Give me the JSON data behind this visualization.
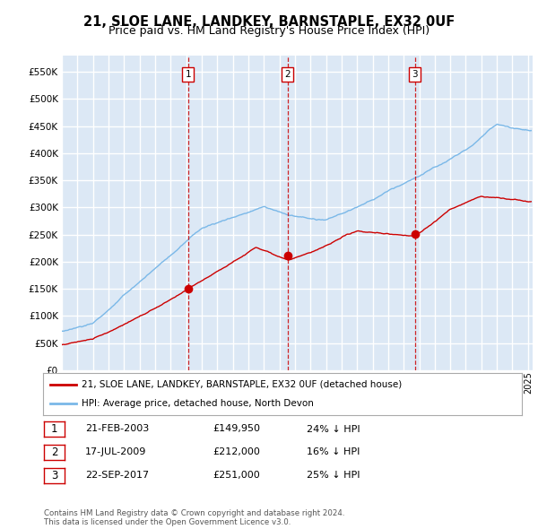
{
  "title": "21, SLOE LANE, LANDKEY, BARNSTAPLE, EX32 0UF",
  "subtitle": "Price paid vs. HM Land Registry's House Price Index (HPI)",
  "ytick_values": [
    0,
    50000,
    100000,
    150000,
    200000,
    250000,
    300000,
    350000,
    400000,
    450000,
    500000,
    550000
  ],
  "ylim": [
    0,
    580000
  ],
  "xlim_start": 1995.0,
  "xlim_end": 2025.3,
  "hpi_color": "#7ab8e8",
  "price_color": "#cc0000",
  "background_chart": "#dce8f5",
  "grid_color": "#ffffff",
  "sale_dates": [
    2003.13,
    2009.54,
    2017.72
  ],
  "sale_prices": [
    149950,
    212000,
    251000
  ],
  "sale_labels": [
    "1",
    "2",
    "3"
  ],
  "vline_color": "#cc0000",
  "legend_label_price": "21, SLOE LANE, LANDKEY, BARNSTAPLE, EX32 0UF (detached house)",
  "legend_label_hpi": "HPI: Average price, detached house, North Devon",
  "table_data": [
    [
      "1",
      "21-FEB-2003",
      "£149,950",
      "24% ↓ HPI"
    ],
    [
      "2",
      "17-JUL-2009",
      "£212,000",
      "16% ↓ HPI"
    ],
    [
      "3",
      "22-SEP-2017",
      "£251,000",
      "25% ↓ HPI"
    ]
  ],
  "footer": "Contains HM Land Registry data © Crown copyright and database right 2024.\nThis data is licensed under the Open Government Licence v3.0.",
  "title_fontsize": 10.5,
  "subtitle_fontsize": 9
}
